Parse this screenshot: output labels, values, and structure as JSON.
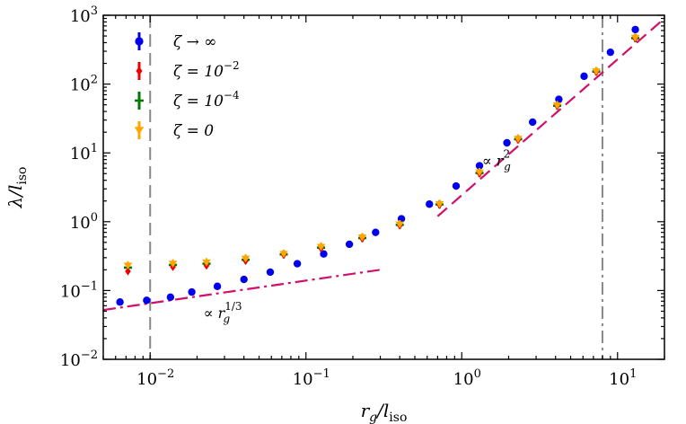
{
  "chart_data": {
    "type": "scatter",
    "xscale": "log",
    "yscale": "log",
    "xlim": [
      0.005,
      20
    ],
    "ylim": [
      0.01,
      1000
    ],
    "xlabel": "r_g / l_iso",
    "ylabel": "λ / l_iso",
    "xticks": [
      {
        "value": 0.01,
        "label": "10^-2"
      },
      {
        "value": 0.1,
        "label": "10^-1"
      },
      {
        "value": 1,
        "label": "10^0"
      },
      {
        "value": 10,
        "label": "10^1"
      }
    ],
    "yticks": [
      {
        "value": 0.01,
        "label": "10^-2"
      },
      {
        "value": 0.1,
        "label": "10^-1"
      },
      {
        "value": 1,
        "label": "10^0"
      },
      {
        "value": 10,
        "label": "10^1"
      },
      {
        "value": 100,
        "label": "10^2"
      },
      {
        "value": 1000,
        "label": "10^3"
      }
    ],
    "legend_position": "top-left",
    "series": [
      {
        "name": "ζ → ∞",
        "color": "#0000ee",
        "marker": "circle",
        "x": [
          0.0064,
          0.0095,
          0.0135,
          0.0185,
          0.027,
          0.04,
          0.059,
          0.088,
          0.13,
          0.19,
          0.28,
          0.41,
          0.62,
          0.92,
          1.3,
          1.95,
          2.85,
          4.2,
          6.1,
          9.0,
          13.0
        ],
        "y": [
          0.068,
          0.072,
          0.08,
          0.095,
          0.115,
          0.145,
          0.185,
          0.245,
          0.34,
          0.47,
          0.7,
          1.1,
          1.8,
          3.3,
          6.5,
          14.0,
          28.0,
          60.0,
          130.0,
          290.0,
          620.0
        ]
      },
      {
        "name": "ζ = 10^-2",
        "color": "#ee0000",
        "marker": "diamond",
        "x": [
          0.0072,
          0.014,
          0.023,
          0.041,
          0.072,
          0.125,
          0.23,
          0.4,
          0.72,
          1.3,
          2.3,
          4.1,
          7.3,
          13.0
        ],
        "y": [
          0.19,
          0.22,
          0.23,
          0.27,
          0.33,
          0.41,
          0.57,
          0.88,
          1.75,
          5.0,
          15.5,
          48.0,
          150.0,
          460.0
        ]
      },
      {
        "name": "ζ = 10^-4",
        "color": "#007700",
        "marker": "plus",
        "x": [
          0.0072,
          0.014,
          0.023,
          0.041,
          0.072,
          0.125,
          0.23,
          0.4,
          0.72,
          1.3,
          2.3,
          4.1,
          7.3,
          13.0
        ],
        "y": [
          0.215,
          0.235,
          0.245,
          0.28,
          0.335,
          0.42,
          0.58,
          0.9,
          1.78,
          5.1,
          15.8,
          48.5,
          152.0,
          465.0
        ]
      },
      {
        "name": "ζ = 0",
        "color": "#ffa500",
        "marker": "triangle-down",
        "x": [
          0.0072,
          0.014,
          0.023,
          0.041,
          0.072,
          0.125,
          0.23,
          0.4,
          0.72,
          1.3,
          2.3,
          4.1,
          7.3,
          13.0
        ],
        "y": [
          0.23,
          0.245,
          0.255,
          0.29,
          0.34,
          0.43,
          0.59,
          0.91,
          1.8,
          5.2,
          16.0,
          49.0,
          153.0,
          470.0
        ]
      }
    ],
    "reference_lines": [
      {
        "name": "vline-left",
        "x": 0.01,
        "style": "dashed",
        "color": "#888888"
      },
      {
        "name": "vline-right",
        "x": 8.0,
        "style": "dashdot",
        "color": "#888888"
      },
      {
        "name": "fit-cuberoot",
        "x": [
          0.005,
          0.3
        ],
        "y": [
          0.052,
          0.2
        ],
        "style": "dashdot",
        "color": "#d0116b"
      },
      {
        "name": "fit-square",
        "x": [
          0.7,
          20
        ],
        "y": [
          1.2,
          900
        ],
        "style": "dashed",
        "color": "#d0116b"
      }
    ],
    "annotations": [
      {
        "name": "cuberoot-label",
        "prefix": "∝ ",
        "base": "r",
        "sub": "g",
        "sup": "1/3",
        "x": 0.022,
        "y": 0.04
      },
      {
        "name": "square-label",
        "prefix": "∝ ",
        "base": "r",
        "sub": "g",
        "sup": "2",
        "x": 1.35,
        "y": 6.5
      }
    ]
  }
}
